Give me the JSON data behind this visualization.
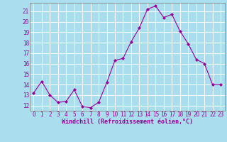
{
  "x": [
    0,
    1,
    2,
    3,
    4,
    5,
    6,
    7,
    8,
    9,
    10,
    11,
    12,
    13,
    14,
    15,
    16,
    17,
    18,
    19,
    20,
    21,
    22,
    23
  ],
  "y": [
    13.2,
    14.3,
    13.0,
    12.3,
    12.4,
    13.5,
    11.9,
    11.8,
    12.3,
    14.2,
    16.3,
    16.5,
    18.1,
    19.4,
    21.2,
    21.5,
    20.4,
    20.7,
    19.1,
    17.9,
    16.4,
    16.0,
    14.0,
    14.0
  ],
  "line_color": "#990099",
  "marker": "D",
  "marker_size": 2.0,
  "bg_color": "#aaddee",
  "grid_color": "#ffffff",
  "xlabel": "Windchill (Refroidissement éolien,°C)",
  "xlim": [
    -0.5,
    23.5
  ],
  "ylim": [
    11.5,
    21.8
  ],
  "yticks": [
    12,
    13,
    14,
    15,
    16,
    17,
    18,
    19,
    20,
    21
  ],
  "xticks": [
    0,
    1,
    2,
    3,
    4,
    5,
    6,
    7,
    8,
    9,
    10,
    11,
    12,
    13,
    14,
    15,
    16,
    17,
    18,
    19,
    20,
    21,
    22,
    23
  ],
  "tick_color": "#990099",
  "label_color": "#990099",
  "spine_color": "#888888",
  "tick_fontsize": 5.5,
  "xlabel_fontsize": 6.0
}
